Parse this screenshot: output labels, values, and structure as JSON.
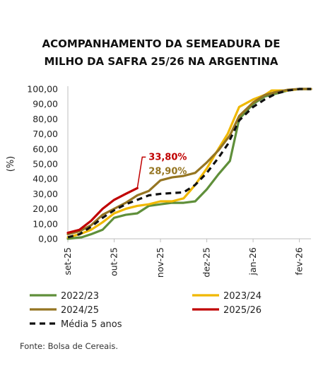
{
  "chart_data": {
    "type": "line",
    "title_lines": [
      "ACOMPANHAMENTO DA SEMEADURA DE",
      "MILHO DA SAFRA 25/26 NA ARGENTINA"
    ],
    "ylabel": "(%)",
    "xlabel": "",
    "ylim": [
      0,
      100
    ],
    "ytick_labels": [
      "0,00",
      "10,00",
      "20,00",
      "30,00",
      "40,00",
      "50,00",
      "60,00",
      "70,00",
      "80,00",
      "90,00",
      "100,00"
    ],
    "x_categories": [
      "set-25",
      "out-25",
      "nov-25",
      "dez-25",
      "jan-26",
      "fev-26"
    ],
    "grid": false,
    "legend_position": "bottom",
    "series": [
      {
        "name": "2022/23",
        "color": "#5f8f3a",
        "points": [
          {
            "x": 0.0,
            "y": 0.0
          },
          {
            "x": 0.3,
            "y": 1.0
          },
          {
            "x": 0.5,
            "y": 3.0
          },
          {
            "x": 0.75,
            "y": 6.0
          },
          {
            "x": 1.0,
            "y": 14.0
          },
          {
            "x": 1.25,
            "y": 16.0
          },
          {
            "x": 1.5,
            "y": 17.0
          },
          {
            "x": 1.75,
            "y": 22.0
          },
          {
            "x": 2.0,
            "y": 23.0
          },
          {
            "x": 2.25,
            "y": 24.0
          },
          {
            "x": 2.5,
            "y": 24.0
          },
          {
            "x": 2.75,
            "y": 25.0
          },
          {
            "x": 3.0,
            "y": 33.0
          },
          {
            "x": 3.25,
            "y": 43.0
          },
          {
            "x": 3.5,
            "y": 52.0
          },
          {
            "x": 3.7,
            "y": 80.0
          },
          {
            "x": 4.0,
            "y": 90.0
          },
          {
            "x": 4.25,
            "y": 95.0
          },
          {
            "x": 4.5,
            "y": 97.0
          },
          {
            "x": 4.75,
            "y": 99.0
          },
          {
            "x": 5.0,
            "y": 100.0
          },
          {
            "x": 5.25,
            "y": 100.0
          }
        ]
      },
      {
        "name": "2023/24",
        "color": "#f0b800",
        "points": [
          {
            "x": 0.0,
            "y": 1.0
          },
          {
            "x": 0.25,
            "y": 3.0
          },
          {
            "x": 0.5,
            "y": 6.0
          },
          {
            "x": 0.75,
            "y": 11.0
          },
          {
            "x": 1.0,
            "y": 17.0
          },
          {
            "x": 1.25,
            "y": 20.0
          },
          {
            "x": 1.5,
            "y": 22.0
          },
          {
            "x": 1.75,
            "y": 23.0
          },
          {
            "x": 2.0,
            "y": 25.0
          },
          {
            "x": 2.25,
            "y": 25.0
          },
          {
            "x": 2.5,
            "y": 27.0
          },
          {
            "x": 2.75,
            "y": 36.0
          },
          {
            "x": 3.0,
            "y": 47.0
          },
          {
            "x": 3.25,
            "y": 60.0
          },
          {
            "x": 3.45,
            "y": 70.0
          },
          {
            "x": 3.7,
            "y": 88.0
          },
          {
            "x": 4.0,
            "y": 93.0
          },
          {
            "x": 4.25,
            "y": 96.0
          },
          {
            "x": 4.4,
            "y": 99.0
          },
          {
            "x": 4.75,
            "y": 99.0
          },
          {
            "x": 5.0,
            "y": 100.0
          },
          {
            "x": 5.25,
            "y": 100.0
          }
        ]
      },
      {
        "name": "2024/25",
        "color": "#957522",
        "points": [
          {
            "x": 0.0,
            "y": 3.0
          },
          {
            "x": 0.25,
            "y": 5.0
          },
          {
            "x": 0.5,
            "y": 9.0
          },
          {
            "x": 0.75,
            "y": 16.0
          },
          {
            "x": 1.0,
            "y": 20.0
          },
          {
            "x": 1.25,
            "y": 24.0
          },
          {
            "x": 1.5,
            "y": 29.0
          },
          {
            "x": 1.75,
            "y": 32.0
          },
          {
            "x": 2.0,
            "y": 39.0
          },
          {
            "x": 2.25,
            "y": 41.0
          },
          {
            "x": 2.5,
            "y": 42.0
          },
          {
            "x": 2.75,
            "y": 44.0
          },
          {
            "x": 3.0,
            "y": 51.0
          },
          {
            "x": 3.25,
            "y": 59.0
          },
          {
            "x": 3.5,
            "y": 69.0
          },
          {
            "x": 3.7,
            "y": 82.0
          },
          {
            "x": 4.0,
            "y": 91.0
          },
          {
            "x": 4.25,
            "y": 96.0
          },
          {
            "x": 4.5,
            "y": 98.0
          },
          {
            "x": 4.75,
            "y": 99.5
          },
          {
            "x": 5.0,
            "y": 100.0
          },
          {
            "x": 5.25,
            "y": 100.0
          }
        ]
      },
      {
        "name": "2025/26",
        "color": "#c00000",
        "points": [
          {
            "x": 0.0,
            "y": 4.0
          },
          {
            "x": 0.25,
            "y": 6.0
          },
          {
            "x": 0.5,
            "y": 12.0
          },
          {
            "x": 0.75,
            "y": 20.0
          },
          {
            "x": 1.0,
            "y": 26.0
          },
          {
            "x": 1.25,
            "y": 30.0
          },
          {
            "x": 1.5,
            "y": 33.8
          }
        ]
      },
      {
        "name": "Média 5 anos",
        "color": "#111111",
        "dashed": true,
        "points": [
          {
            "x": 0.0,
            "y": 1.0
          },
          {
            "x": 0.25,
            "y": 3.0
          },
          {
            "x": 0.5,
            "y": 8.0
          },
          {
            "x": 0.75,
            "y": 14.0
          },
          {
            "x": 1.0,
            "y": 19.0
          },
          {
            "x": 1.25,
            "y": 23.0
          },
          {
            "x": 1.5,
            "y": 26.0
          },
          {
            "x": 1.75,
            "y": 29.0
          },
          {
            "x": 2.0,
            "y": 30.0
          },
          {
            "x": 2.25,
            "y": 30.5
          },
          {
            "x": 2.5,
            "y": 31.0
          },
          {
            "x": 2.75,
            "y": 36.0
          },
          {
            "x": 3.0,
            "y": 44.0
          },
          {
            "x": 3.25,
            "y": 54.0
          },
          {
            "x": 3.45,
            "y": 63.0
          },
          {
            "x": 3.7,
            "y": 79.0
          },
          {
            "x": 4.0,
            "y": 88.0
          },
          {
            "x": 4.25,
            "y": 93.0
          },
          {
            "x": 4.5,
            "y": 97.0
          },
          {
            "x": 4.75,
            "y": 99.0
          },
          {
            "x": 5.0,
            "y": 100.0
          },
          {
            "x": 5.25,
            "y": 100.0
          }
        ]
      }
    ],
    "annotations": [
      {
        "text": "33,80%",
        "series": "2025/26",
        "x": 1.5,
        "y": 33.8,
        "color": "#c00000"
      },
      {
        "text": "28,90%",
        "series": "2024/25",
        "x": 1.5,
        "y": 28.9,
        "color": "#957522"
      }
    ],
    "source": "Fonte: Bolsa de Cereais."
  }
}
